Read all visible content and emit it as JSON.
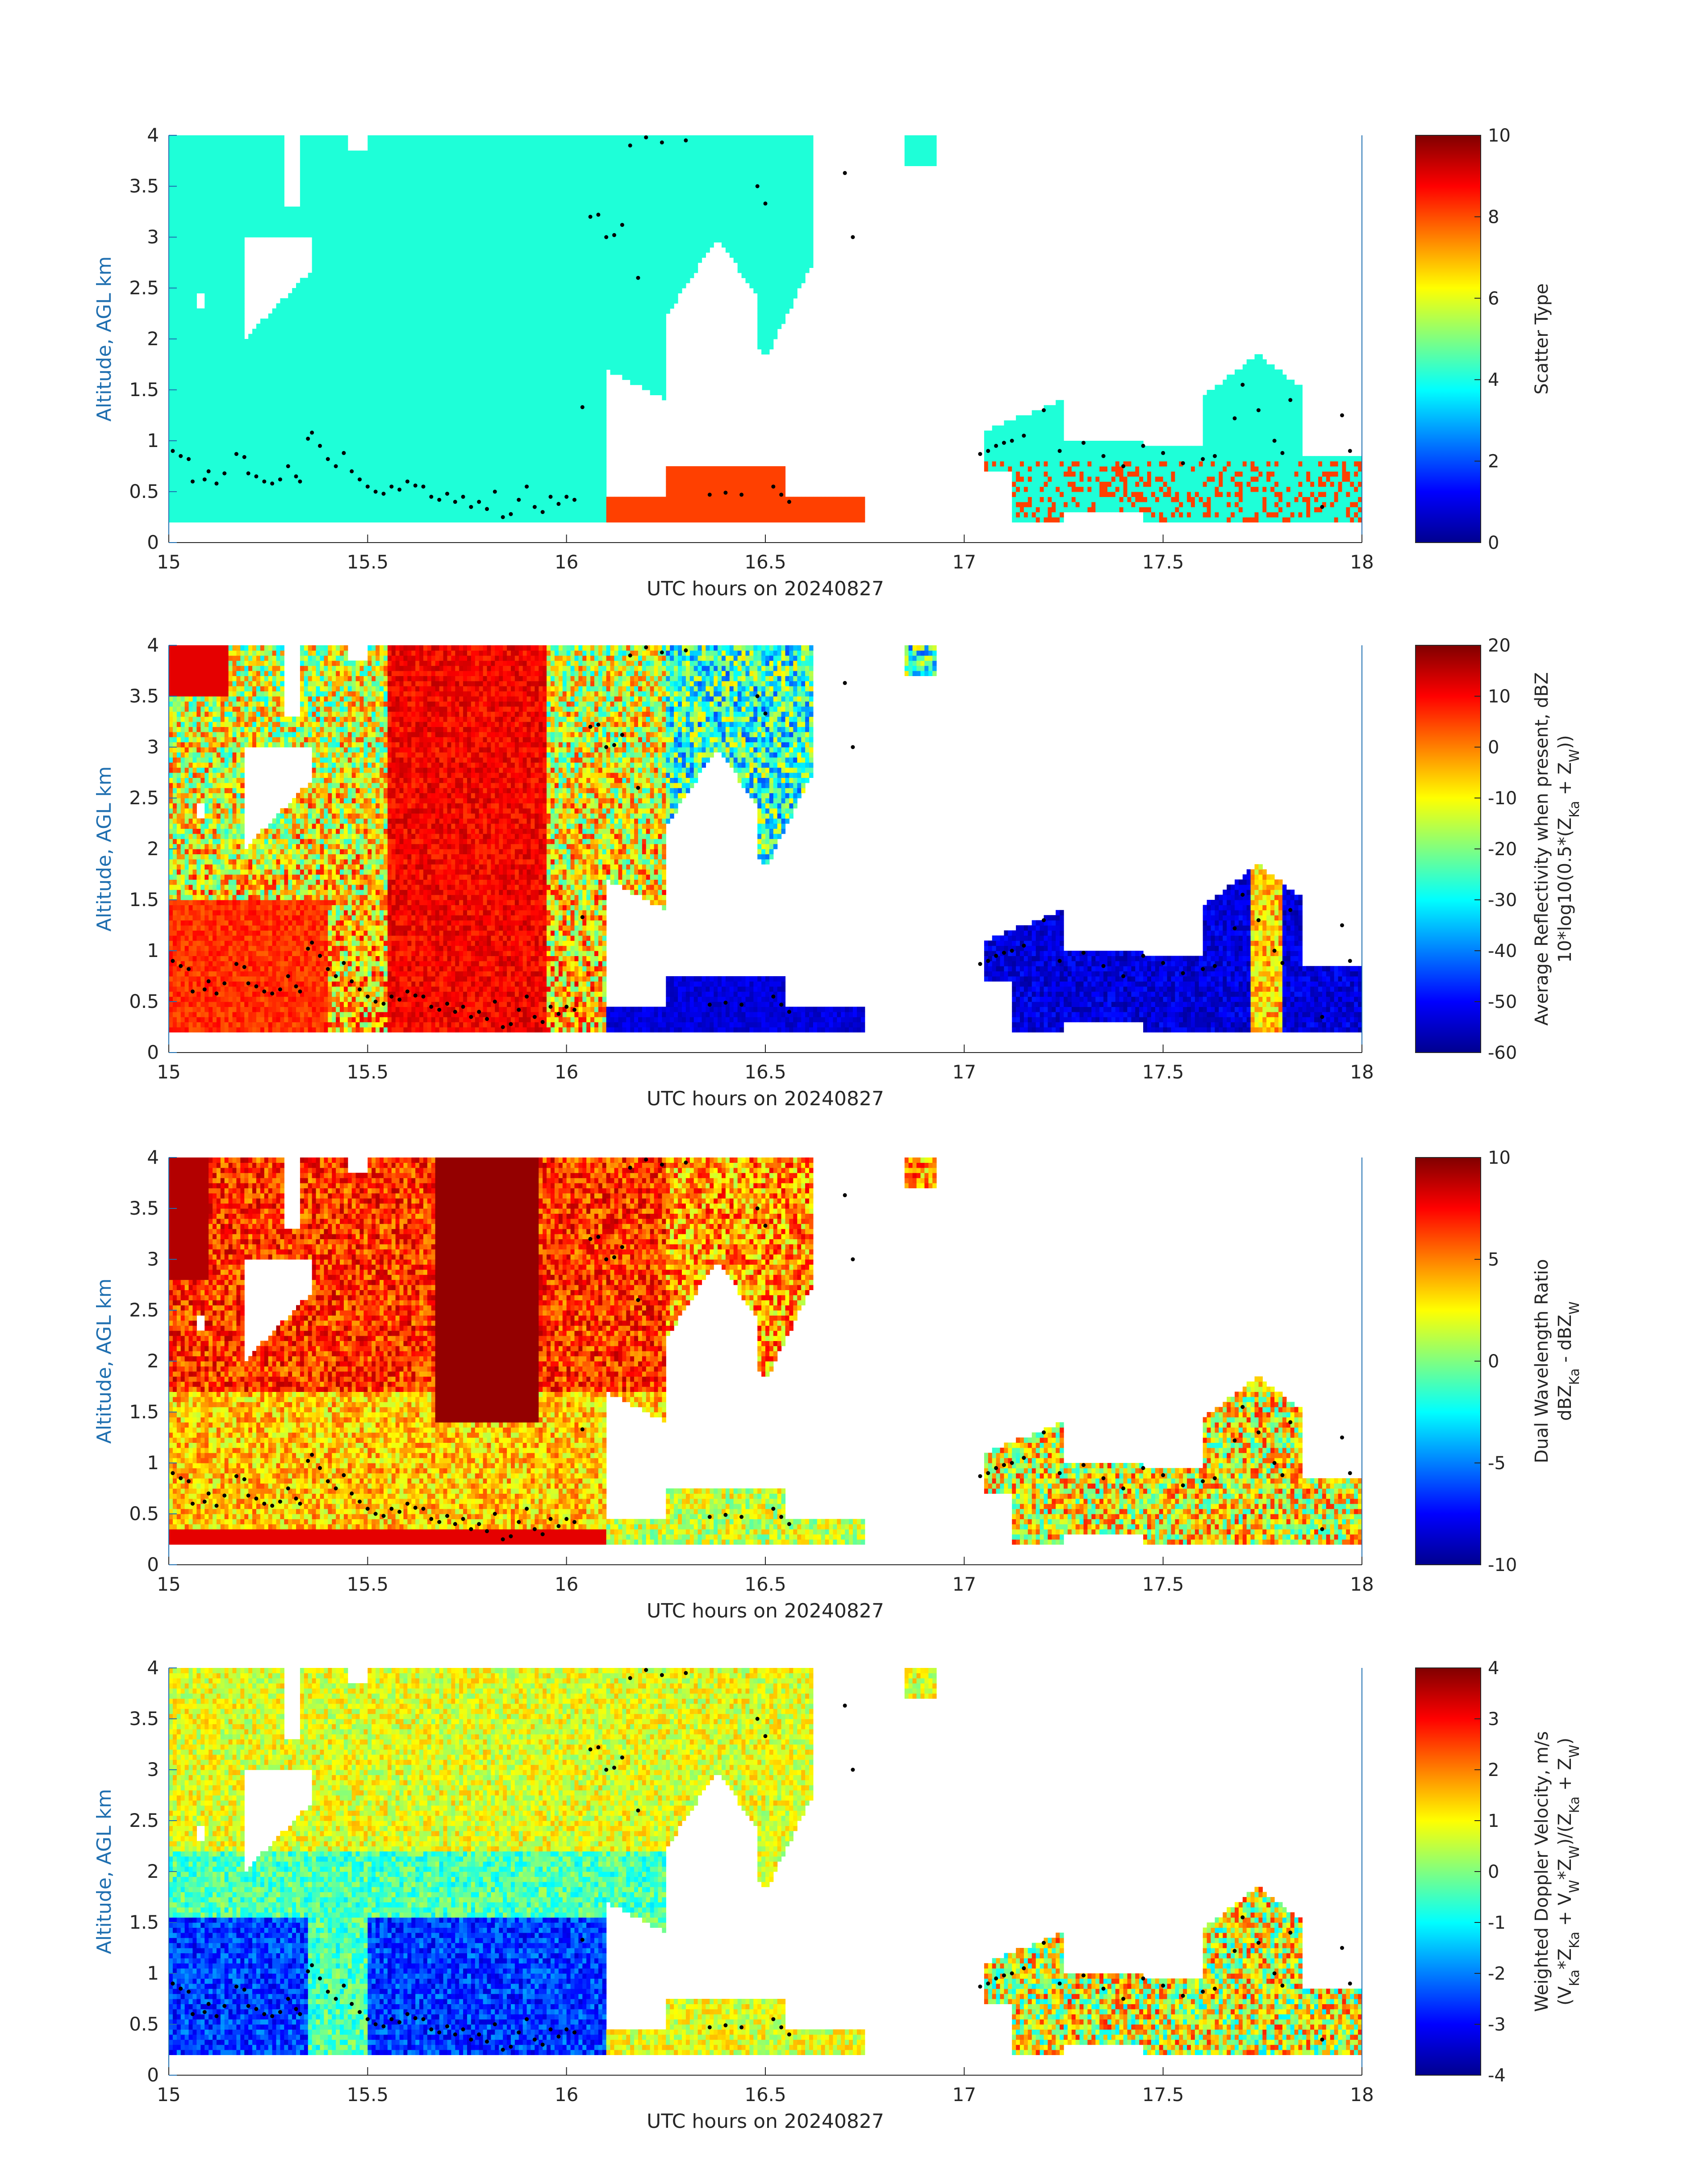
{
  "chart_data": [
    {
      "type": "heatmap",
      "id": "scatter",
      "xlabel": "UTC hours on 20240827",
      "ylabel": "Altitude, AGL km",
      "xlim": [
        15,
        18
      ],
      "ylim": [
        0,
        4
      ],
      "xticks": [
        "15",
        "15.5",
        "16",
        "16.5",
        "17",
        "17.5",
        "18"
      ],
      "yticks": [
        "0",
        "0.5",
        "1",
        "1.5",
        "2",
        "2.5",
        "3",
        "3.5",
        "4"
      ],
      "colorbar": {
        "label_lines": [
          "Scatter Type"
        ],
        "min": 0,
        "max": 10,
        "ticks": [
          "0",
          "2",
          "4",
          "6",
          "8",
          "10"
        ]
      },
      "categories": {
        "cyan_value": 3.5,
        "orange_value": 8.5
      }
    },
    {
      "type": "heatmap",
      "id": "reflectivity",
      "xlabel": "UTC hours on 20240827",
      "ylabel": "Altitude, AGL km",
      "xlim": [
        15,
        18
      ],
      "ylim": [
        0,
        4
      ],
      "xticks": [
        "15",
        "15.5",
        "16",
        "16.5",
        "17",
        "17.5",
        "18"
      ],
      "yticks": [
        "0",
        "0.5",
        "1",
        "1.5",
        "2",
        "2.5",
        "3",
        "3.5",
        "4"
      ],
      "colorbar": {
        "label_lines": [
          "Average Reflectivity when present, dBZ",
          "10*log10(0.5*(Z_Ka + Z_W))"
        ],
        "min": -60,
        "max": 20,
        "ticks": [
          "-60",
          "-50",
          "-40",
          "-30",
          "-20",
          "-10",
          "0",
          "10",
          "20"
        ]
      }
    },
    {
      "type": "heatmap",
      "id": "dwr",
      "xlabel": "UTC hours on 20240827",
      "ylabel": "Altitude, AGL km",
      "xlim": [
        15,
        18
      ],
      "ylim": [
        0,
        4
      ],
      "xticks": [
        "15",
        "15.5",
        "16",
        "16.5",
        "17",
        "17.5",
        "18"
      ],
      "yticks": [
        "0",
        "0.5",
        "1",
        "1.5",
        "2",
        "2.5",
        "3",
        "3.5",
        "4"
      ],
      "colorbar": {
        "label_lines": [
          "Dual Wavelength Ratio",
          "dBZ_Ka - dBZ_W"
        ],
        "min": -10,
        "max": 10,
        "ticks": [
          "-10",
          "-5",
          "0",
          "5",
          "10"
        ]
      }
    },
    {
      "type": "heatmap",
      "id": "velocity",
      "xlabel": "UTC hours on 20240827",
      "ylabel": "Altitude, AGL km",
      "xlim": [
        15,
        18
      ],
      "ylim": [
        0,
        4
      ],
      "xticks": [
        "15",
        "15.5",
        "16",
        "16.5",
        "17",
        "17.5",
        "18"
      ],
      "yticks": [
        "0",
        "0.5",
        "1",
        "1.5",
        "2",
        "2.5",
        "3",
        "3.5",
        "4"
      ],
      "colorbar": {
        "label_lines": [
          "Weighted Doppler Velocity, m/s",
          "(V_Ka*Z_Ka + V_W*Z_W)/(Z_Ka + Z_W)"
        ],
        "min": -4,
        "max": 4,
        "ticks": [
          "-4",
          "-3",
          "-2",
          "-1",
          "0",
          "1",
          "2",
          "3",
          "4"
        ]
      }
    }
  ],
  "cloud_base_points": {
    "description_units": "x in UTC hours, y in km AGL",
    "points": [
      [
        15.01,
        0.9
      ],
      [
        15.03,
        0.85
      ],
      [
        15.05,
        0.82
      ],
      [
        15.06,
        0.6
      ],
      [
        15.09,
        0.62
      ],
      [
        15.1,
        0.7
      ],
      [
        15.12,
        0.58
      ],
      [
        15.14,
        0.68
      ],
      [
        15.17,
        0.87
      ],
      [
        15.19,
        0.84
      ],
      [
        15.2,
        0.68
      ],
      [
        15.22,
        0.65
      ],
      [
        15.24,
        0.6
      ],
      [
        15.26,
        0.58
      ],
      [
        15.28,
        0.62
      ],
      [
        15.3,
        0.75
      ],
      [
        15.32,
        0.65
      ],
      [
        15.33,
        0.6
      ],
      [
        15.35,
        1.02
      ],
      [
        15.36,
        1.08
      ],
      [
        15.38,
        0.95
      ],
      [
        15.4,
        0.82
      ],
      [
        15.42,
        0.75
      ],
      [
        15.44,
        0.88
      ],
      [
        15.46,
        0.7
      ],
      [
        15.48,
        0.62
      ],
      [
        15.5,
        0.55
      ],
      [
        15.52,
        0.5
      ],
      [
        15.54,
        0.48
      ],
      [
        15.56,
        0.55
      ],
      [
        15.58,
        0.52
      ],
      [
        15.6,
        0.6
      ],
      [
        15.62,
        0.56
      ],
      [
        15.64,
        0.55
      ],
      [
        15.66,
        0.45
      ],
      [
        15.68,
        0.42
      ],
      [
        15.7,
        0.48
      ],
      [
        15.72,
        0.4
      ],
      [
        15.74,
        0.45
      ],
      [
        15.76,
        0.35
      ],
      [
        15.78,
        0.4
      ],
      [
        15.8,
        0.33
      ],
      [
        15.82,
        0.5
      ],
      [
        15.84,
        0.25
      ],
      [
        15.86,
        0.28
      ],
      [
        15.88,
        0.42
      ],
      [
        15.9,
        0.55
      ],
      [
        15.92,
        0.35
      ],
      [
        15.94,
        0.3
      ],
      [
        15.96,
        0.45
      ],
      [
        15.98,
        0.38
      ],
      [
        16.0,
        0.45
      ],
      [
        16.02,
        0.42
      ],
      [
        16.04,
        1.33
      ],
      [
        16.06,
        3.2
      ],
      [
        16.08,
        3.22
      ],
      [
        16.1,
        3.0
      ],
      [
        16.12,
        3.02
      ],
      [
        16.14,
        3.12
      ],
      [
        16.16,
        3.9
      ],
      [
        16.18,
        2.6
      ],
      [
        16.2,
        3.98
      ],
      [
        16.24,
        3.93
      ],
      [
        16.3,
        3.95
      ],
      [
        16.36,
        0.47
      ],
      [
        16.4,
        0.49
      ],
      [
        16.44,
        0.47
      ],
      [
        16.48,
        3.5
      ],
      [
        16.5,
        3.33
      ],
      [
        16.52,
        0.55
      ],
      [
        16.54,
        0.47
      ],
      [
        16.56,
        0.4
      ],
      [
        16.7,
        3.63
      ],
      [
        16.72,
        3.0
      ],
      [
        17.04,
        0.87
      ],
      [
        17.06,
        0.9
      ],
      [
        17.08,
        0.95
      ],
      [
        17.1,
        0.98
      ],
      [
        17.12,
        1.0
      ],
      [
        17.15,
        1.05
      ],
      [
        17.2,
        1.3
      ],
      [
        17.24,
        0.9
      ],
      [
        17.3,
        0.98
      ],
      [
        17.35,
        0.85
      ],
      [
        17.4,
        0.75
      ],
      [
        17.45,
        0.95
      ],
      [
        17.5,
        0.88
      ],
      [
        17.55,
        0.78
      ],
      [
        17.6,
        0.82
      ],
      [
        17.63,
        0.85
      ],
      [
        17.68,
        1.22
      ],
      [
        17.7,
        1.55
      ],
      [
        17.74,
        1.3
      ],
      [
        17.78,
        1.0
      ],
      [
        17.8,
        0.88
      ],
      [
        17.82,
        1.4
      ],
      [
        17.9,
        0.35
      ],
      [
        17.95,
        1.25
      ],
      [
        17.97,
        0.9
      ]
    ]
  }
}
